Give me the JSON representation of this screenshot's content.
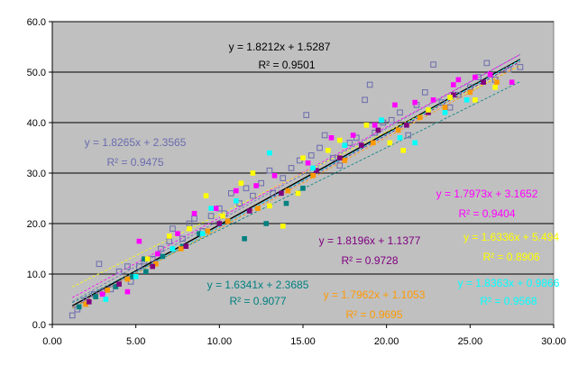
{
  "chart_data": {
    "type": "scatter",
    "title": "",
    "xlabel": "",
    "ylabel": "",
    "xlim": [
      0,
      30
    ],
    "ylim": [
      0,
      60
    ],
    "x_ticks": [
      "0.00",
      "5.00",
      "10.00",
      "15.00",
      "20.00",
      "25.00",
      "30.00"
    ],
    "y_ticks": [
      "0.0",
      "10.0",
      "20.0",
      "30.0",
      "40.0",
      "50.0",
      "60.0"
    ],
    "grid": "horizontal",
    "legend": "none",
    "colors": {
      "plot_background": "#c0c0c0",
      "overall": "#000000",
      "hollow": "#6b6bb0",
      "magenta": "#ff00ff",
      "yellow": "#ffff00",
      "purple": "#800080",
      "teal": "#008080",
      "cyan": "#00ffff",
      "orange": "#ff9900"
    },
    "series": [
      {
        "key": "overall",
        "marker": "none",
        "color": "#000000",
        "fit": {
          "slope": 1.8212,
          "intercept": 1.5287
        },
        "equation": "y = 1.8212x + 1.5287",
        "r2": "R² = 0.9501",
        "points": []
      },
      {
        "key": "hollow",
        "marker": "hollow-square",
        "color": "#6b6bb0",
        "fit": {
          "slope": 1.8265,
          "intercept": 2.3565
        },
        "equation": "y = 1.8265x + 2.3565",
        "r2": "R² = 0.9475",
        "points": [
          [
            1.2,
            1.8
          ],
          [
            1.5,
            3.0
          ],
          [
            2.0,
            4.8
          ],
          [
            2.5,
            6.0
          ],
          [
            2.8,
            12.0
          ],
          [
            3.0,
            6.5
          ],
          [
            3.5,
            7.0
          ],
          [
            4.0,
            10.5
          ],
          [
            4.5,
            11.5
          ],
          [
            4.7,
            8.5
          ],
          [
            5.2,
            11.5
          ],
          [
            5.5,
            12.5
          ],
          [
            6.0,
            13.0
          ],
          [
            6.5,
            15.0
          ],
          [
            7.0,
            16.5
          ],
          [
            7.2,
            19.0
          ],
          [
            7.8,
            17.0
          ],
          [
            8.2,
            20.0
          ],
          [
            8.5,
            21.0
          ],
          [
            9.0,
            18.5
          ],
          [
            9.5,
            21.5
          ],
          [
            10.0,
            23.0
          ],
          [
            10.3,
            22.0
          ],
          [
            10.7,
            26.0
          ],
          [
            11.2,
            24.0
          ],
          [
            11.6,
            27.0
          ],
          [
            12.0,
            25.5
          ],
          [
            12.5,
            28.0
          ],
          [
            13.0,
            30.5
          ],
          [
            13.2,
            26.0
          ],
          [
            13.8,
            29.0
          ],
          [
            14.3,
            31.0
          ],
          [
            14.8,
            32.5
          ],
          [
            15.2,
            41.5
          ],
          [
            15.5,
            33.5
          ],
          [
            16.0,
            35.0
          ],
          [
            16.3,
            37.5
          ],
          [
            16.8,
            33.0
          ],
          [
            17.2,
            31.5
          ],
          [
            17.8,
            36.0
          ],
          [
            18.2,
            37.0
          ],
          [
            18.7,
            44.5
          ],
          [
            19.0,
            47.5
          ],
          [
            19.3,
            38.0
          ],
          [
            19.8,
            40.0
          ],
          [
            20.3,
            40.5
          ],
          [
            20.8,
            42.0
          ],
          [
            21.3,
            37.5
          ],
          [
            21.8,
            43.5
          ],
          [
            22.3,
            46.0
          ],
          [
            22.8,
            51.5
          ],
          [
            23.3,
            44.0
          ],
          [
            23.8,
            43.0
          ],
          [
            24.3,
            45.5
          ],
          [
            25.0,
            47.0
          ],
          [
            25.5,
            49.0
          ],
          [
            26.0,
            51.8
          ],
          [
            26.5,
            48.5
          ],
          [
            27.3,
            50.5
          ],
          [
            28.0,
            51.0
          ]
        ]
      },
      {
        "key": "magenta",
        "marker": "filled-square",
        "color": "#ff00ff",
        "fit": {
          "slope": 1.7973,
          "intercept": 3.1652
        },
        "equation": "y = 1.7973x + 3.1652",
        "r2": "R² = 0.9404",
        "points": [
          [
            3.0,
            6.0
          ],
          [
            4.5,
            6.5
          ],
          [
            5.2,
            16.5
          ],
          [
            6.3,
            14.0
          ],
          [
            7.5,
            18.0
          ],
          [
            8.5,
            22.0
          ],
          [
            9.8,
            23.0
          ],
          [
            11.0,
            26.5
          ],
          [
            12.2,
            27.5
          ],
          [
            13.3,
            29.5
          ],
          [
            15.3,
            32.0
          ],
          [
            16.7,
            37.0
          ],
          [
            18.0,
            37.5
          ],
          [
            19.3,
            39.5
          ],
          [
            20.5,
            43.5
          ],
          [
            21.7,
            44.0
          ],
          [
            22.8,
            44.5
          ],
          [
            24.0,
            47.5
          ],
          [
            24.3,
            48.5
          ],
          [
            25.3,
            49.0
          ],
          [
            26.2,
            49.5
          ],
          [
            27.5,
            48.0
          ]
        ]
      },
      {
        "key": "yellow",
        "marker": "filled-square",
        "color": "#ffff00",
        "fit": {
          "slope": 1.6336,
          "intercept": 5.494
        },
        "equation": "y = 1.6336x + 5.494",
        "r2": "R² = 0.8906",
        "points": [
          [
            5.7,
            13.0
          ],
          [
            7.0,
            17.5
          ],
          [
            8.2,
            19.0
          ],
          [
            9.2,
            25.5
          ],
          [
            10.2,
            21.5
          ],
          [
            11.3,
            28.0
          ],
          [
            12.0,
            30.0
          ],
          [
            13.0,
            23.5
          ],
          [
            13.8,
            19.5
          ],
          [
            14.7,
            26.0
          ],
          [
            15.0,
            33.0
          ],
          [
            16.5,
            34.5
          ],
          [
            17.2,
            36.5
          ],
          [
            18.8,
            39.5
          ],
          [
            20.2,
            36.0
          ],
          [
            21.0,
            34.5
          ],
          [
            22.5,
            42.5
          ],
          [
            23.8,
            45.0
          ],
          [
            25.3,
            44.5
          ],
          [
            26.5,
            47.0
          ]
        ]
      },
      {
        "key": "purple",
        "marker": "filled-square",
        "color": "#800080",
        "fit": {
          "slope": 1.8196,
          "intercept": 1.1377
        },
        "equation": "y = 1.8196x + 1.1377",
        "r2": "R² = 0.9728",
        "points": [
          [
            2.2,
            4.5
          ],
          [
            4.0,
            8.0
          ],
          [
            6.0,
            11.5
          ],
          [
            8.0,
            15.5
          ],
          [
            10.0,
            20.0
          ],
          [
            11.8,
            22.5
          ],
          [
            13.7,
            26.0
          ],
          [
            15.8,
            30.5
          ],
          [
            17.2,
            33.0
          ],
          [
            18.5,
            35.5
          ],
          [
            19.5,
            38.5
          ],
          [
            21.2,
            39.5
          ],
          [
            22.5,
            42.0
          ],
          [
            24.0,
            45.5
          ],
          [
            25.8,
            48.0
          ]
        ]
      },
      {
        "key": "teal",
        "marker": "filled-square",
        "color": "#008080",
        "fit": {
          "slope": 1.6341,
          "intercept": 2.3685
        },
        "equation": "y = 1.6341x + 2.3685",
        "r2": "R² = 0.9077",
        "points": [
          [
            1.6,
            3.5
          ],
          [
            2.6,
            5.5
          ],
          [
            3.8,
            7.5
          ],
          [
            4.8,
            9.5
          ],
          [
            5.5,
            13.0
          ],
          [
            5.6,
            10.5
          ],
          [
            6.6,
            13.5
          ],
          [
            7.8,
            15.5
          ],
          [
            8.8,
            18.0
          ],
          [
            10.5,
            20.5
          ],
          [
            11.5,
            17.0
          ],
          [
            12.8,
            20.0
          ],
          [
            14.0,
            24.0
          ],
          [
            15.0,
            27.0
          ]
        ]
      },
      {
        "key": "cyan",
        "marker": "filled-square",
        "color": "#00ffff",
        "fit": {
          "slope": 1.8363,
          "intercept": 0.9866
        },
        "equation": "y = 1.8363x + 0.9866",
        "r2": "R² = 0.9568",
        "points": [
          [
            3.2,
            5.0
          ],
          [
            5.0,
            9.5
          ],
          [
            7.2,
            15.0
          ],
          [
            9.0,
            18.0
          ],
          [
            9.5,
            23.0
          ],
          [
            11.0,
            24.5
          ],
          [
            13.0,
            34.0
          ],
          [
            15.6,
            31.0
          ],
          [
            17.5,
            35.5
          ],
          [
            19.7,
            40.5
          ],
          [
            20.8,
            37.0
          ],
          [
            21.7,
            36.0
          ],
          [
            23.5,
            42.0
          ],
          [
            24.8,
            44.5
          ]
        ]
      },
      {
        "key": "orange",
        "marker": "filled-square",
        "color": "#ff9900",
        "fit": {
          "slope": 1.7962,
          "intercept": 1.1053
        },
        "equation": "y = 1.7962x + 1.1053",
        "r2": "R² = 0.9695",
        "points": [
          [
            2.0,
            4.0
          ],
          [
            3.3,
            6.8
          ],
          [
            4.5,
            9.0
          ],
          [
            6.2,
            12.0
          ],
          [
            7.7,
            15.0
          ],
          [
            9.3,
            18.5
          ],
          [
            10.5,
            20.5
          ],
          [
            12.3,
            23.0
          ],
          [
            14.1,
            26.5
          ],
          [
            15.6,
            29.5
          ],
          [
            17.5,
            32.5
          ],
          [
            19.2,
            36.0
          ],
          [
            20.7,
            38.5
          ],
          [
            22.0,
            41.0
          ],
          [
            23.5,
            43.0
          ],
          [
            25.0,
            46.0
          ],
          [
            26.6,
            48.0
          ]
        ]
      }
    ]
  }
}
